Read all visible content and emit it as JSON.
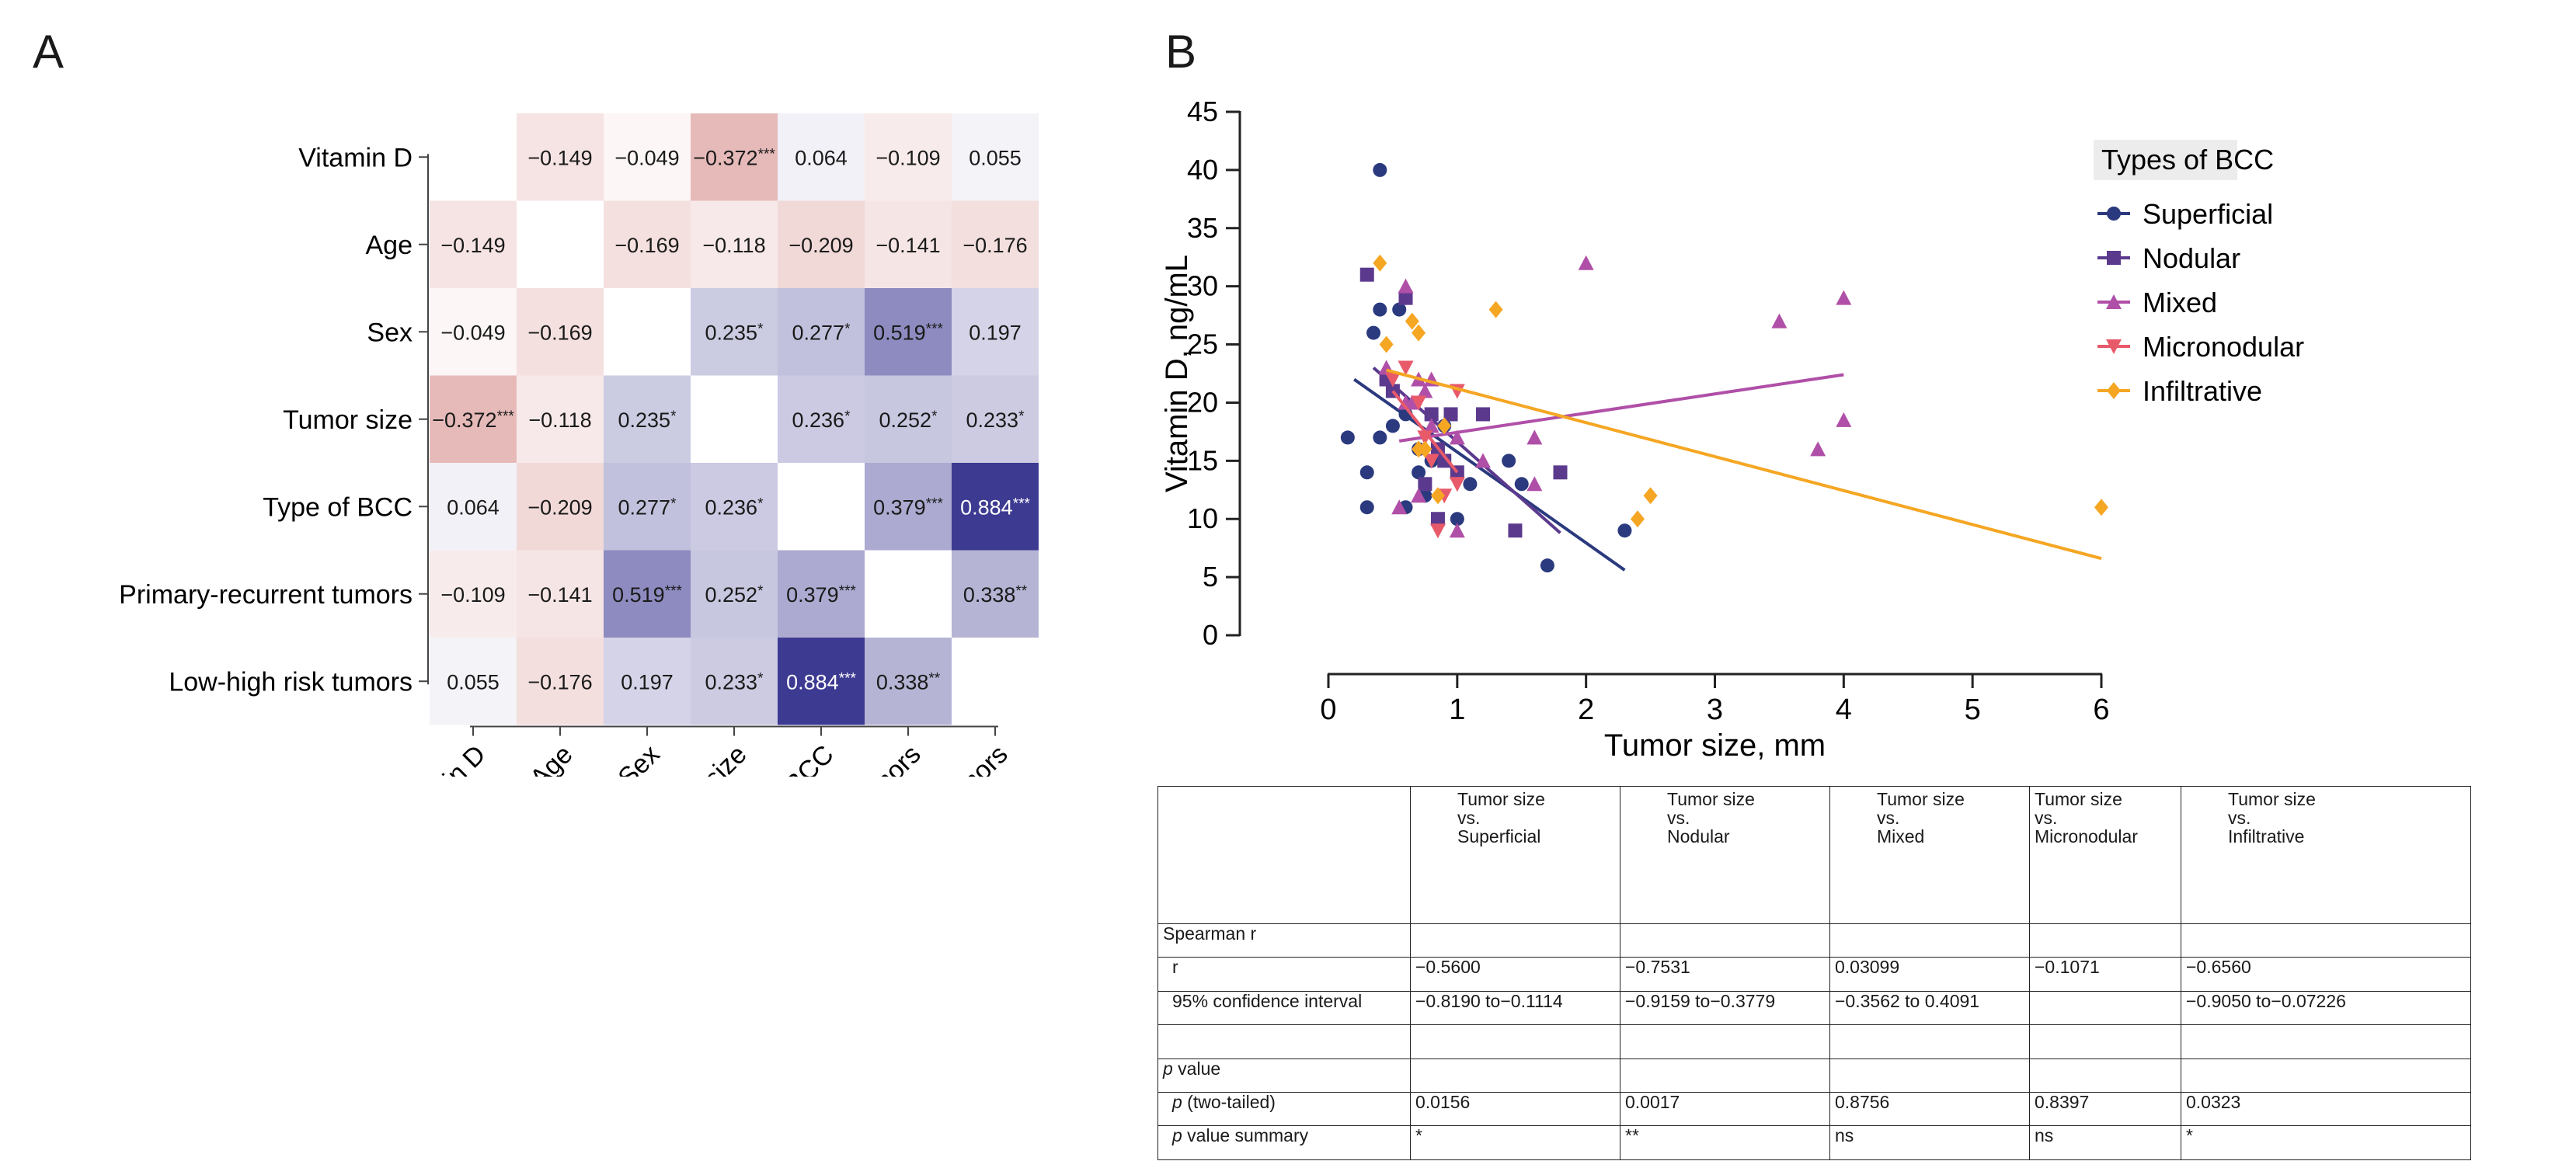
{
  "panels": {
    "a": "A",
    "b": "B"
  },
  "chart_data": [
    {
      "type": "heatmap",
      "title": "",
      "variables": [
        "Vitamin D",
        "Age",
        "Sex",
        "Tumor size",
        "Type of BCC",
        "Primary-recurrent tumors",
        "Low-high risk tumors"
      ],
      "matrix": [
        [
          null,
          -0.149,
          -0.049,
          -0.372,
          0.064,
          -0.109,
          0.055
        ],
        [
          -0.149,
          null,
          -0.169,
          -0.118,
          -0.209,
          -0.141,
          -0.176
        ],
        [
          -0.049,
          -0.169,
          null,
          0.235,
          0.277,
          0.519,
          0.197
        ],
        [
          -0.372,
          -0.118,
          0.235,
          null,
          0.236,
          0.252,
          0.233
        ],
        [
          0.064,
          -0.209,
          0.277,
          0.236,
          null,
          0.379,
          0.884
        ],
        [
          -0.109,
          -0.141,
          0.519,
          0.252,
          0.379,
          null,
          0.338
        ],
        [
          0.055,
          -0.176,
          0.197,
          0.233,
          0.884,
          0.338,
          null
        ]
      ],
      "labels": [
        [
          "",
          "−0.149",
          "−0.049",
          "−0.372***",
          "0.064",
          "−0.109",
          "0.055"
        ],
        [
          "−0.149",
          "",
          "−0.169",
          "−0.118",
          "−0.209",
          "−0.141",
          "−0.176"
        ],
        [
          "−0.049",
          "−0.169",
          "",
          "0.235*",
          "0.277*",
          "0.519***",
          "0.197"
        ],
        [
          "−0.372***",
          "−0.118",
          "0.235*",
          "",
          "0.236*",
          "0.252*",
          "0.233*"
        ],
        [
          "0.064",
          "−0.209",
          "0.277*",
          "0.236*",
          "",
          "0.379***",
          "0.884***"
        ],
        [
          "−0.109",
          "−0.141",
          "0.519***",
          "0.252*",
          "0.379***",
          "",
          "0.338**"
        ],
        [
          "0.055",
          "−0.176",
          "0.197",
          "0.233*",
          "0.884***",
          "0.338**",
          ""
        ]
      ],
      "colors": {
        "negative": "#c0504d",
        "positive": "#2e2b8a",
        "zero": "#ffffff"
      }
    },
    {
      "type": "scatter",
      "xlabel": "Tumor size, mm",
      "ylabel": "Vitamin D, ng/mL",
      "xlim": [
        0,
        6
      ],
      "ylim": [
        0,
        45
      ],
      "xticks": [
        0,
        1,
        2,
        3,
        4,
        5,
        6
      ],
      "yticks": [
        0,
        5,
        10,
        15,
        20,
        25,
        30,
        35,
        40,
        45
      ],
      "legend_title": "Types of BCC",
      "legend_position": "top-right",
      "series": [
        {
          "name": "Superficial",
          "color": "#2b3a7e",
          "marker": "circle",
          "points": [
            [
              0.4,
              40
            ],
            [
              0.35,
              26
            ],
            [
              0.4,
              28
            ],
            [
              0.55,
              28
            ],
            [
              0.6,
              29
            ],
            [
              0.15,
              17
            ],
            [
              0.3,
              14
            ],
            [
              0.3,
              11
            ],
            [
              0.45,
              22
            ],
            [
              0.5,
              18
            ],
            [
              0.4,
              17
            ],
            [
              0.6,
              19
            ],
            [
              0.7,
              16
            ],
            [
              0.7,
              14
            ],
            [
              0.75,
              12
            ],
            [
              0.6,
              11
            ],
            [
              0.8,
              15
            ],
            [
              0.9,
              18
            ],
            [
              1.0,
              10
            ],
            [
              1.1,
              13
            ],
            [
              1.4,
              15
            ],
            [
              1.5,
              13
            ],
            [
              1.7,
              6
            ],
            [
              2.3,
              9
            ]
          ],
          "fit": [
            [
              0.2,
              22
            ],
            [
              2.3,
              5.6
            ]
          ]
        },
        {
          "name": "Nodular",
          "color": "#5b3a8e",
          "marker": "square",
          "points": [
            [
              0.3,
              31
            ],
            [
              0.45,
              22
            ],
            [
              0.5,
              21
            ],
            [
              0.6,
              29
            ],
            [
              0.8,
              19
            ],
            [
              0.85,
              16
            ],
            [
              0.9,
              15
            ],
            [
              0.95,
              19
            ],
            [
              0.85,
              10
            ],
            [
              1.0,
              14
            ],
            [
              1.2,
              19
            ],
            [
              1.45,
              9
            ],
            [
              1.8,
              14
            ],
            [
              0.75,
              13
            ]
          ],
          "fit": [
            [
              0.35,
              23
            ],
            [
              1.8,
              8.8
            ]
          ]
        },
        {
          "name": "Mixed",
          "color": "#b04fa8",
          "marker": "triangle-up",
          "points": [
            [
              0.45,
              23
            ],
            [
              0.6,
              30
            ],
            [
              0.6,
              20
            ],
            [
              0.65,
              20
            ],
            [
              0.7,
              22
            ],
            [
              0.75,
              21
            ],
            [
              0.8,
              18
            ],
            [
              0.55,
              11
            ],
            [
              0.7,
              12
            ],
            [
              1.0,
              9
            ],
            [
              1.0,
              17
            ],
            [
              1.2,
              15
            ],
            [
              1.6,
              13
            ],
            [
              1.6,
              17
            ],
            [
              2.0,
              32
            ],
            [
              3.5,
              27
            ],
            [
              3.8,
              16
            ],
            [
              4.0,
              29
            ],
            [
              4.0,
              18.5
            ],
            [
              0.8,
              22
            ]
          ],
          "fit": [
            [
              0.55,
              16.7
            ],
            [
              4.0,
              22.4
            ]
          ]
        },
        {
          "name": "Micronodular",
          "color": "#e85a6a",
          "marker": "triangle-down",
          "points": [
            [
              0.5,
              22
            ],
            [
              0.6,
              23
            ],
            [
              0.7,
              20
            ],
            [
              0.8,
              15
            ],
            [
              0.85,
              9
            ],
            [
              1.0,
              21
            ],
            [
              1.0,
              13
            ],
            [
              0.75,
              17
            ],
            [
              0.9,
              12
            ]
          ],
          "fit": [
            [
              0.5,
              21
            ],
            [
              1.0,
              14
            ]
          ]
        },
        {
          "name": "Infiltrative",
          "color": "#f5a623",
          "marker": "diamond",
          "points": [
            [
              0.4,
              32
            ],
            [
              0.45,
              25
            ],
            [
              0.65,
              27
            ],
            [
              0.7,
              26
            ],
            [
              1.3,
              28
            ],
            [
              0.7,
              16
            ],
            [
              0.75,
              16
            ],
            [
              0.9,
              18
            ],
            [
              2.4,
              10
            ],
            [
              2.5,
              12
            ],
            [
              6.0,
              11
            ],
            [
              0.85,
              12
            ]
          ],
          "fit": [
            [
              0.45,
              22.8
            ],
            [
              6.0,
              6.6
            ]
          ]
        }
      ]
    },
    {
      "type": "table",
      "header": [
        "",
        "Tumor size\nvs.\nSuperficial",
        "Tumor size\nvs.\nNodular",
        "Tumor size\nvs.\nMixed",
        "Tumor size\nvs.\nMicronodular",
        "Tumor size\nvs.\nInfiltrative"
      ],
      "rows": [
        [
          "Spearman r",
          "",
          "",
          "",
          "",
          ""
        ],
        [
          "r",
          "−0.5600",
          "−0.7531",
          "0.03099",
          "−0.1071",
          "−0.6560"
        ],
        [
          "95% confidence interval",
          "−0.8190 to−0.1114",
          "−0.9159 to−0.3779",
          "−0.3562 to 0.4091",
          "",
          "−0.9050 to−0.07226"
        ],
        [
          "",
          "",
          "",
          "",
          "",
          ""
        ],
        [
          "p value",
          "",
          "",
          "",
          "",
          ""
        ],
        [
          "p   (two-tailed)",
          "0.0156",
          "0.0017",
          "0.8756",
          "0.8397",
          "0.0323"
        ],
        [
          "p   value summary",
          "*",
          "**",
          "ns",
          "ns",
          "*"
        ]
      ]
    }
  ]
}
